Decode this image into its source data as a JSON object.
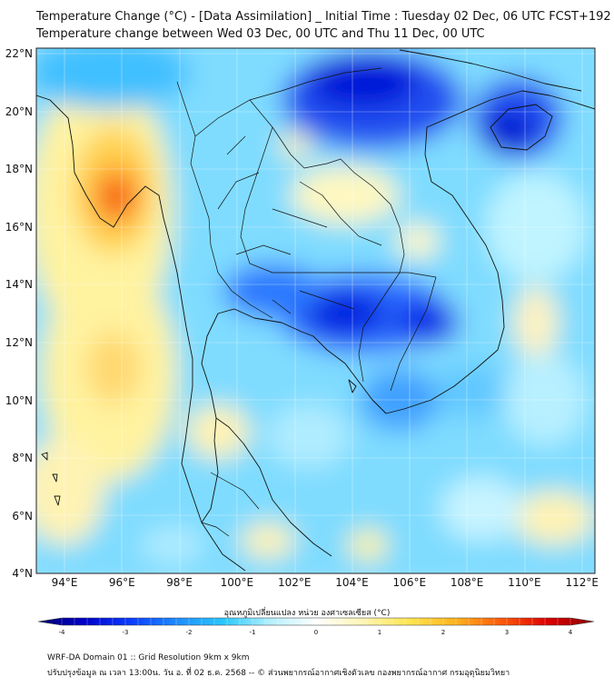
{
  "title_line1": "Temperature Change (°C) - [Data Assimilation] _ Initial Time : Tuesday 02 Dec, 06 UTC FCST+192",
  "title_line2": "Temperature change between Wed 03 Dec, 00 UTC and Thu 11 Dec, 00 UTC",
  "lat_labels": [
    "22°N",
    "20°N",
    "18°N",
    "16°N",
    "14°N",
    "12°N",
    "10°N",
    "8°N",
    "6°N",
    "4°N"
  ],
  "lon_labels": [
    "94°E",
    "96°E",
    "98°E",
    "100°E",
    "102°E",
    "104°E",
    "106°E",
    "108°E",
    "110°E",
    "112°E"
  ],
  "colorbar": {
    "label": "อุณหภูมิเปลี่ยนแปลง หน่วย องศาเซลเซียส (°C)",
    "ticks": [
      "-4",
      "-3",
      "-2",
      "-1",
      "0",
      "1",
      "2",
      "3",
      "4"
    ],
    "min": -4,
    "max": 4,
    "colors": [
      "#00006e",
      "#0000c8",
      "#0a3cff",
      "#1e8cff",
      "#28c8ff",
      "#b4f0ff",
      "#ffffff",
      "#fff5b4",
      "#ffe650",
      "#ffb41e",
      "#ff5a0a",
      "#dc0000",
      "#8c0000"
    ]
  },
  "footer_line1": "WRF-DA Domain 01 :: Grid Resolution 9km x 9km",
  "footer_line2": "ปรับปรุงข้อมูล ณ เวลา 13:00น. วัน อ. ที่ 02 ธ.ค. 2568 -- © ส่วนพยากรณ์อากาศเชิงตัวเลข กองพยากรณ์อากาศ กรมอุตุนิยมวิทยา"
}
